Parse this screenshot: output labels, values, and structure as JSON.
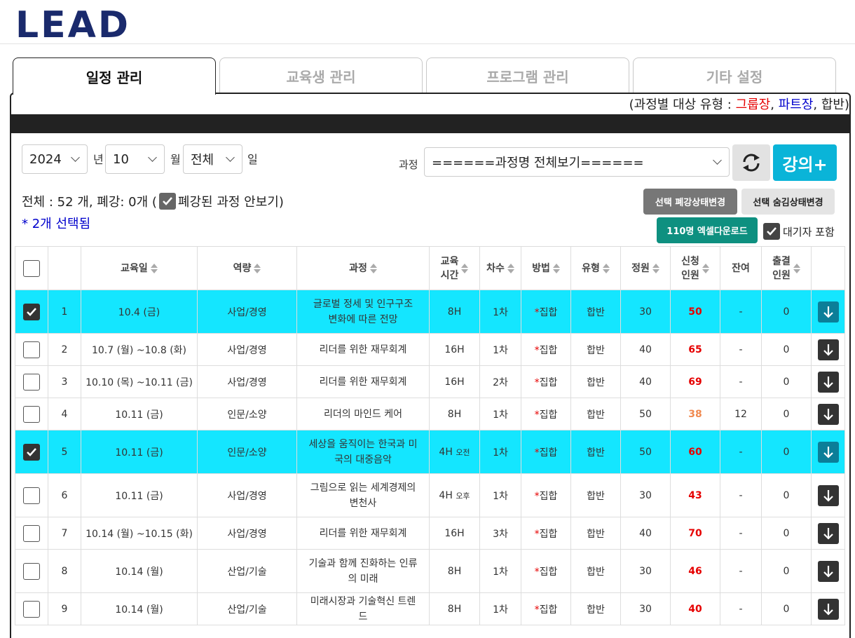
{
  "logo": "LEAD",
  "tabs": [
    {
      "label": "일정 관리",
      "active": true
    },
    {
      "label": "교육생 관리",
      "active": false
    },
    {
      "label": "프로그램 관리",
      "active": false
    },
    {
      "label": "기타 설정",
      "active": false
    }
  ],
  "legend": {
    "prefix": "(과정별 대상 유형 : ",
    "group": "그룹장",
    "sep1": ", ",
    "part": "파트장",
    "sep2": ", ",
    "combined": "합반",
    "suffix": ")"
  },
  "filters": {
    "year": "2024",
    "year_unit": "년",
    "month": "10",
    "month_unit": "월",
    "day": "전체",
    "day_unit": "일",
    "course_label": "과정",
    "course_value": "======과정명 전체보기======"
  },
  "add_button": "강의+",
  "summary": {
    "text": "전체 : 52 개, 폐강: 0개 (",
    "hide_closed": "폐강된 과정 안보기)"
  },
  "selected_count": "* 2개 선택됨",
  "buttons": {
    "close_status": "선택 폐강상태변경",
    "hide_status": "선택 숨김상태변경",
    "excel": "110명 엑셀다운로드",
    "waitlist": "대기자 포함"
  },
  "columns": [
    "교육일",
    "역량",
    "과정",
    "교육\n시간",
    "차수",
    "방법",
    "유형",
    "정원",
    "신청\n인원",
    "잔여",
    "출결\n인원"
  ],
  "rows": [
    {
      "no": "1",
      "date": "10.4 (금)",
      "area": "사업/경영",
      "course": "글로벌 정세 및 인구구조 변화에 따른 전망",
      "hours": "8H",
      "hours_sub": "",
      "round": "1차",
      "method": "집합",
      "type": "합반",
      "cap": "30",
      "applied": "50",
      "applied_color": "red",
      "remain": "-",
      "attend": "0",
      "checked": true
    },
    {
      "no": "2",
      "date": "10.7 (월) ~10.8 (화)",
      "area": "사업/경영",
      "course": "리더를 위한 재무회계",
      "hours": "16H",
      "hours_sub": "",
      "round": "1차",
      "method": "집합",
      "type": "합반",
      "cap": "40",
      "applied": "65",
      "applied_color": "red",
      "remain": "-",
      "attend": "0",
      "checked": false
    },
    {
      "no": "3",
      "date": "10.10 (목) ~10.11 (금)",
      "area": "사업/경영",
      "course": "리더를 위한 재무회계",
      "hours": "16H",
      "hours_sub": "",
      "round": "2차",
      "method": "집합",
      "type": "합반",
      "cap": "40",
      "applied": "69",
      "applied_color": "red",
      "remain": "-",
      "attend": "0",
      "checked": false
    },
    {
      "no": "4",
      "date": "10.11 (금)",
      "area": "인문/소양",
      "course": "리더의 마인드 케어",
      "hours": "8H",
      "hours_sub": "",
      "round": "1차",
      "method": "집합",
      "type": "합반",
      "cap": "50",
      "applied": "38",
      "applied_color": "orange",
      "remain": "12",
      "attend": "0",
      "checked": false
    },
    {
      "no": "5",
      "date": "10.11 (금)",
      "area": "인문/소양",
      "course": "세상을 움직이는 한국과 미국의 대중음악",
      "hours": "4H",
      "hours_sub": "오전",
      "round": "1차",
      "method": "집합",
      "type": "합반",
      "cap": "50",
      "applied": "60",
      "applied_color": "red",
      "remain": "-",
      "attend": "0",
      "checked": true
    },
    {
      "no": "6",
      "date": "10.11 (금)",
      "area": "사업/경영",
      "course": "그림으로 읽는 세계경제의 변천사",
      "hours": "4H",
      "hours_sub": "오후",
      "round": "1차",
      "method": "집합",
      "type": "합반",
      "cap": "30",
      "applied": "43",
      "applied_color": "red",
      "remain": "-",
      "attend": "0",
      "checked": false
    },
    {
      "no": "7",
      "date": "10.14 (월) ~10.15 (화)",
      "area": "사업/경영",
      "course": "리더를 위한 재무회계",
      "hours": "16H",
      "hours_sub": "",
      "round": "3차",
      "method": "집합",
      "type": "합반",
      "cap": "40",
      "applied": "70",
      "applied_color": "red",
      "remain": "-",
      "attend": "0",
      "checked": false
    },
    {
      "no": "8",
      "date": "10.14 (월)",
      "area": "산업/기술",
      "course": "기술과 함께 진화하는 인류의 미래",
      "hours": "8H",
      "hours_sub": "",
      "round": "1차",
      "method": "집합",
      "type": "합반",
      "cap": "30",
      "applied": "46",
      "applied_color": "red",
      "remain": "-",
      "attend": "0",
      "checked": false
    },
    {
      "no": "9",
      "date": "10.14 (월)",
      "area": "산업/기술",
      "course": "미래시장과 기술혁신 트렌드",
      "hours": "8H",
      "hours_sub": "",
      "round": "1차",
      "method": "집합",
      "type": "합반",
      "cap": "30",
      "applied": "40",
      "applied_color": "red",
      "remain": "-",
      "attend": "0",
      "checked": false
    }
  ]
}
